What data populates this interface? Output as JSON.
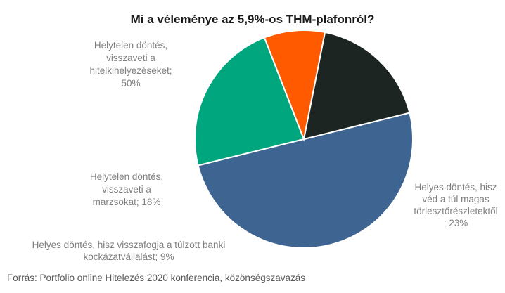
{
  "chart_data": {
    "type": "pie",
    "title": "Mi a véleménye az 5,9%-os THM-plafonról?",
    "slices": [
      {
        "label": "Helytelen döntés, visszaveti a hitelkihelyezéseket; 50%",
        "lines": [
          "Helytelen döntés,",
          "visszaveti a",
          "hitelkihelyezéseket;",
          "50%"
        ],
        "value": 50,
        "color": "#3e6592"
      },
      {
        "label": "Helyes döntés, hisz véd a túl magas törlesztőrészletektől ; 23%",
        "lines": [
          "Helyes döntés, hisz",
          "véd a túl magas",
          "törlesztőrészletektől",
          "; 23%"
        ],
        "value": 23,
        "color": "#00a67e"
      },
      {
        "label": "Helyes döntés, hisz visszafogja a túlzott banki kockázatvállalást; 9%",
        "lines": [
          "Helyes döntés, hisz visszafogja a túlzott banki",
          "kockázatvállalást; 9%"
        ],
        "value": 9,
        "color": "#ff5a00"
      },
      {
        "label": "Helytelen döntés, visszaveti a marzsokat; 18%",
        "lines": [
          "Helytelen döntés,",
          "visszaveti a",
          "marzsokat; 18%"
        ],
        "value": 18,
        "color": "#1d2523"
      }
    ],
    "legend": "none"
  },
  "source": "Forrás: Portfolio online Hitelezés 2020 konferencia, közönségszavazás"
}
